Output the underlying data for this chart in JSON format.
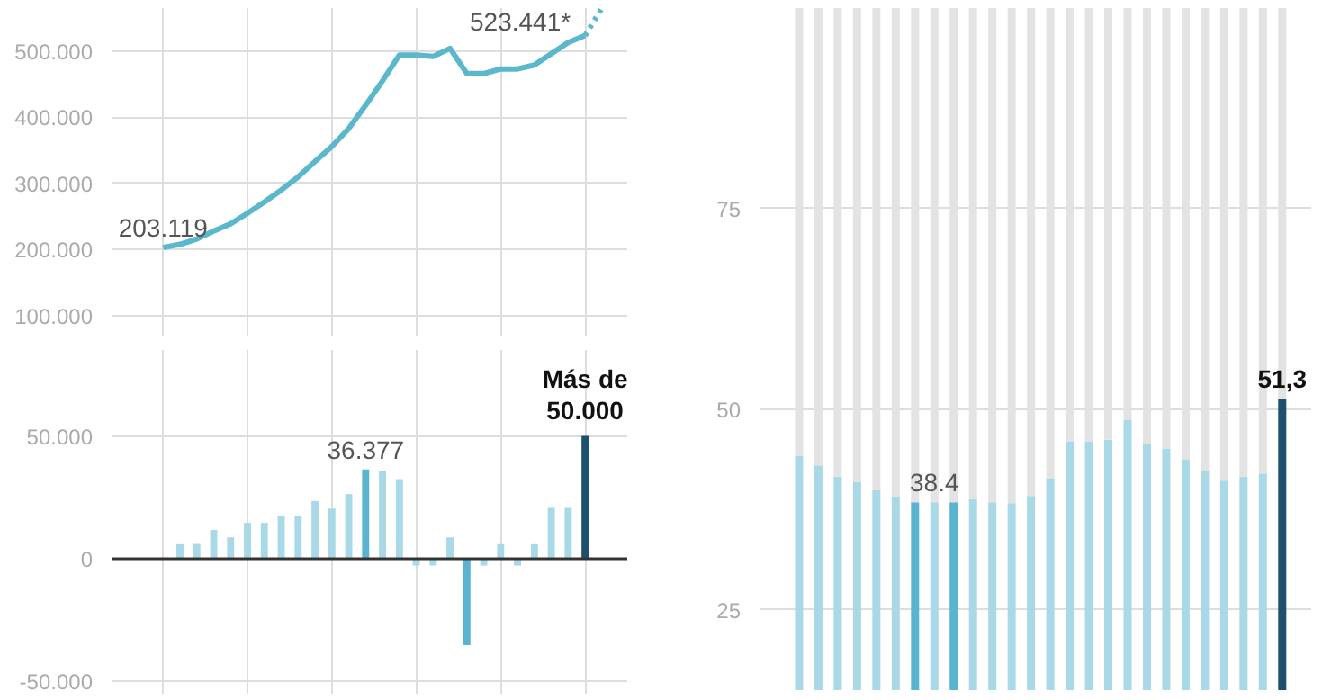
{
  "chart_data": [
    {
      "type": "line",
      "categories": [
        null,
        null,
        null,
        null,
        null,
        null,
        null,
        null,
        null,
        null,
        null,
        null,
        null,
        null,
        null,
        null,
        null,
        null,
        null,
        null,
        null,
        null,
        null,
        null,
        null,
        null,
        null
      ],
      "ylim": [
        70,
        565
      ],
      "yticks": [
        {
          "value": 100,
          "label": "100.000"
        },
        {
          "value": 200,
          "label": "200.000"
        },
        {
          "value": 300,
          "label": "300.000"
        },
        {
          "value": 400,
          "label": "400.000"
        },
        {
          "value": 500,
          "label": "500.000"
        }
      ],
      "grid": true,
      "tick_labels": "y",
      "series": [
        {
          "color": "#5bb8cc",
          "line_style": "solid",
          "values": [
            203.119,
            208,
            216,
            228,
            239,
            255,
            272,
            290,
            310,
            333,
            356,
            383,
            418,
            455,
            494,
            494,
            492,
            504,
            466,
            466,
            473,
            473,
            479,
            496,
            513,
            523.441,
            null
          ],
          "value_labels": [
            "203.119",
            null,
            null,
            null,
            null,
            null,
            null,
            null,
            null,
            null,
            null,
            null,
            null,
            null,
            null,
            null,
            null,
            null,
            null,
            null,
            null,
            null,
            null,
            null,
            null,
            "523.441*",
            null
          ]
        },
        {
          "color": "#5bb8cc",
          "line_style": "dotted",
          "values": [
            null,
            null,
            null,
            null,
            null,
            null,
            null,
            null,
            null,
            null,
            null,
            null,
            null,
            null,
            null,
            null,
            null,
            null,
            null,
            null,
            null,
            null,
            null,
            null,
            null,
            523.441,
            565
          ]
        }
      ]
    },
    {
      "type": "bar",
      "categories": [
        null,
        null,
        null,
        null,
        null,
        null,
        null,
        null,
        null,
        null,
        null,
        null,
        null,
        null,
        null,
        null,
        null,
        null,
        null,
        null,
        null,
        null,
        null,
        null,
        null,
        null,
        null
      ],
      "ylim": [
        -55,
        85
      ],
      "yticks": [
        {
          "value": -50,
          "label": "-50.000"
        },
        {
          "value": 0,
          "label": "0"
        },
        {
          "value": 50,
          "label": "50.000"
        }
      ],
      "grid": true,
      "tick_labels": "y",
      "ref_lines": [
        {
          "axis": "y",
          "value": 0,
          "color": "#333333"
        }
      ],
      "values": [
        null,
        5.9,
        6.0,
        11.7,
        8.7,
        14.6,
        14.6,
        17.6,
        17.6,
        23.5,
        20.4,
        26.3,
        36.377,
        35.7,
        32.4,
        -2.8,
        -2.8,
        8.7,
        -35.2,
        -2.8,
        5.9,
        -2.8,
        5.9,
        20.7,
        20.7,
        50,
        null
      ],
      "colors": [
        "#a9d8e6",
        "#a9d8e6",
        "#a9d8e6",
        "#a9d8e6",
        "#a9d8e6",
        "#a9d8e6",
        "#a9d8e6",
        "#a9d8e6",
        "#a9d8e6",
        "#a9d8e6",
        "#a9d8e6",
        "#a9d8e6",
        "#5ab4cf",
        "#a9d8e6",
        "#a9d8e6",
        "#a9d8e6",
        "#a9d8e6",
        "#a9d8e6",
        "#5ab4cf",
        "#a9d8e6",
        "#a9d8e6",
        "#a9d8e6",
        "#a9d8e6",
        "#a9d8e6",
        "#a9d8e6",
        "#1f4f6e",
        "#a9d8e6"
      ],
      "value_labels": [
        null,
        null,
        null,
        null,
        null,
        null,
        null,
        null,
        null,
        null,
        null,
        null,
        "36.377",
        null,
        null,
        null,
        null,
        null,
        null,
        null,
        null,
        null,
        null,
        null,
        null,
        "Más de\n50.000",
        null
      ]
    },
    {
      "type": "bar",
      "stacked": true,
      "categories": [
        null,
        null,
        null,
        null,
        null,
        null,
        null,
        null,
        null,
        null,
        null,
        null,
        null,
        null,
        null,
        null,
        null,
        null,
        null,
        null,
        null,
        null,
        null,
        null,
        null,
        null
      ],
      "ylim": [
        15,
        100
      ],
      "yticks": [
        25,
        50,
        75
      ],
      "grid": "y",
      "series": [
        {
          "colors": [
            "#a9d8e6",
            "#a9d8e6",
            "#a9d8e6",
            "#a9d8e6",
            "#a9d8e6",
            "#a9d8e6",
            "#5ab4cf",
            "#a9d8e6",
            "#5ab4cf",
            "#a9d8e6",
            "#a9d8e6",
            "#a9d8e6",
            "#a9d8e6",
            "#a9d8e6",
            "#a9d8e6",
            "#a9d8e6",
            "#a9d8e6",
            "#a9d8e6",
            "#a9d8e6",
            "#a9d8e6",
            "#a9d8e6",
            "#a9d8e6",
            "#a9d8e6",
            "#a9d8e6",
            "#a9d8e6",
            "#1f4f6e"
          ],
          "values": [
            44.2,
            43.0,
            41.6,
            40.9,
            39.9,
            39.1,
            38.4,
            38.4,
            38.4,
            38.8,
            38.4,
            38.3,
            39.2,
            41.4,
            46.0,
            46.0,
            46.2,
            48.7,
            45.7,
            45.1,
            43.7,
            42.3,
            41.1,
            41.6,
            42.0,
            51.3
          ],
          "value_labels": [
            null,
            null,
            null,
            null,
            null,
            null,
            null,
            "38.4",
            null,
            null,
            null,
            null,
            null,
            null,
            null,
            null,
            null,
            null,
            null,
            null,
            null,
            null,
            null,
            null,
            null,
            "51,3"
          ]
        },
        {
          "color": "#e3e3e3",
          "values": [
            55.8,
            57.0,
            58.4,
            59.1,
            60.1,
            60.9,
            61.6,
            61.6,
            61.6,
            61.2,
            61.6,
            61.7,
            60.8,
            58.6,
            54.0,
            54.0,
            53.8,
            51.3,
            54.3,
            54.9,
            56.3,
            57.7,
            58.9,
            58.4,
            58.0,
            48.7
          ]
        }
      ]
    }
  ]
}
